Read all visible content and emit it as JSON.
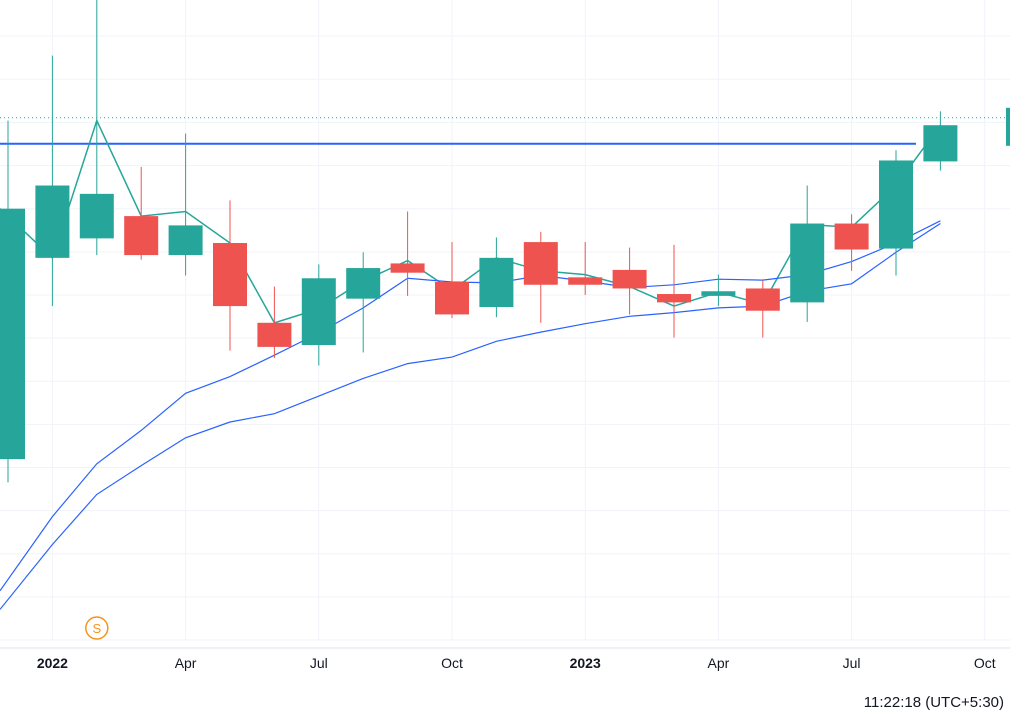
{
  "chart_data": {
    "type": "candlestick",
    "interval": "monthly",
    "ylim": [
      0,
      690
    ],
    "x_tick_labels": [
      {
        "label": "2022",
        "date": "2022-01",
        "year": true
      },
      {
        "label": "Apr",
        "date": "2022-04",
        "year": false
      },
      {
        "label": "Jul",
        "date": "2022-07",
        "year": false
      },
      {
        "label": "Oct",
        "date": "2022-10",
        "year": false
      },
      {
        "label": "2023",
        "date": "2023-01",
        "year": true
      },
      {
        "label": "Apr",
        "date": "2023-04",
        "year": false
      },
      {
        "label": "Jul",
        "date": "2023-07",
        "year": false
      },
      {
        "label": "Oct",
        "date": "2023-10",
        "year": false
      }
    ],
    "candles": [
      {
        "date": "2021-12",
        "open": 195,
        "high": 560,
        "low": 170,
        "close": 465
      },
      {
        "date": "2022-01",
        "open": 412,
        "high": 630,
        "low": 360,
        "close": 490
      },
      {
        "date": "2022-02",
        "open": 433,
        "high": 720,
        "low": 415,
        "close": 481
      },
      {
        "date": "2022-03",
        "open": 457,
        "high": 510,
        "low": 410,
        "close": 415
      },
      {
        "date": "2022-04",
        "open": 415,
        "high": 546,
        "low": 393,
        "close": 447
      },
      {
        "date": "2022-05",
        "open": 428,
        "high": 474,
        "low": 312,
        "close": 360
      },
      {
        "date": "2022-06",
        "open": 342,
        "high": 381,
        "low": 304,
        "close": 316
      },
      {
        "date": "2022-07",
        "open": 318,
        "high": 405,
        "low": 296,
        "close": 390
      },
      {
        "date": "2022-08",
        "open": 368,
        "high": 418,
        "low": 310,
        "close": 401
      },
      {
        "date": "2022-09",
        "open": 406,
        "high": 462,
        "low": 371,
        "close": 396
      },
      {
        "date": "2022-10",
        "open": 386,
        "high": 429,
        "low": 347,
        "close": 351
      },
      {
        "date": "2022-11",
        "open": 359,
        "high": 434,
        "low": 348,
        "close": 412
      },
      {
        "date": "2022-12",
        "open": 429,
        "high": 440,
        "low": 342,
        "close": 383
      },
      {
        "date": "2023-01",
        "open": 391,
        "high": 429,
        "low": 372,
        "close": 383
      },
      {
        "date": "2023-02",
        "open": 399,
        "high": 423,
        "low": 351,
        "close": 379
      },
      {
        "date": "2023-03",
        "open": 373,
        "high": 426,
        "low": 326,
        "close": 364
      },
      {
        "date": "2023-04",
        "open": 371,
        "high": 394,
        "low": 360,
        "close": 376
      },
      {
        "date": "2023-05",
        "open": 379,
        "high": 388,
        "low": 326,
        "close": 355
      },
      {
        "date": "2023-06",
        "open": 364,
        "high": 490,
        "low": 343,
        "close": 449
      },
      {
        "date": "2023-07",
        "open": 449,
        "high": 459,
        "low": 398,
        "close": 421
      },
      {
        "date": "2023-08",
        "open": 422,
        "high": 528,
        "low": 393,
        "close": 517
      },
      {
        "date": "2023-09",
        "open": 516,
        "high": 570,
        "low": 506,
        "close": 555
      }
    ],
    "series": [
      {
        "color": "#26a69a",
        "x": [
          "2021-12",
          "2022-01",
          "2022-02",
          "2022-03",
          "2022-04",
          "2022-05",
          "2022-06",
          "2022-07",
          "2022-08",
          "2022-09",
          "2022-10",
          "2022-11",
          "2022-12",
          "2023-01",
          "2023-02",
          "2023-03",
          "2023-04",
          "2023-05",
          "2023-06",
          "2023-07",
          "2023-08",
          "2023-09"
        ],
        "values": [
          465,
          412,
          560,
          457,
          462,
          428,
          342,
          357,
          387,
          409,
          377,
          412,
          398,
          394,
          381,
          360,
          375,
          362,
          448,
          445,
          490,
          555
        ]
      },
      {
        "color": "#2962ff",
        "x": [
          "2021-12",
          "2022-01",
          "2022-02",
          "2022-03",
          "2022-04",
          "2022-05",
          "2022-06",
          "2022-07",
          "2022-08",
          "2022-09",
          "2022-10",
          "2022-11",
          "2022-12",
          "2023-01",
          "2023-02",
          "2023-03",
          "2023-04",
          "2023-05",
          "2023-06",
          "2023-07",
          "2023-08",
          "2023-09"
        ],
        "values": [
          53,
          133,
          190,
          226,
          266,
          284,
          307,
          331,
          358,
          390,
          386,
          385,
          393,
          387,
          380,
          383,
          389,
          388,
          394,
          408,
          428,
          452
        ]
      },
      {
        "color": "#2962ff",
        "x": [
          "2021-12",
          "2022-01",
          "2022-02",
          "2022-03",
          "2022-04",
          "2022-05",
          "2022-06",
          "2022-07",
          "2022-08",
          "2022-09",
          "2022-10",
          "2022-11",
          "2022-12",
          "2023-01",
          "2023-02",
          "2023-03",
          "2023-04",
          "2023-05",
          "2023-06",
          "2023-07",
          "2023-08",
          "2023-09"
        ],
        "values": [
          33,
          103,
          157,
          188,
          218,
          235,
          244,
          263,
          282,
          298,
          305,
          322,
          332,
          341,
          349,
          353,
          358,
          360,
          376,
          384,
          418,
          449
        ]
      }
    ],
    "horizontal_line": {
      "value": 535,
      "color": "#2962ff"
    },
    "price_line": {
      "value": 563,
      "color": "#26a69a",
      "style": "dotted"
    },
    "grid": true,
    "event_marker": {
      "label": "S",
      "date": "2022-02",
      "color": "#f7931a"
    }
  },
  "colors": {
    "up": "#26a69a",
    "down": "#ef5350",
    "grid": "#f0f3fa",
    "text": "#131722"
  },
  "status": {
    "clock": "11:22:18 (UTC+5:30)"
  }
}
